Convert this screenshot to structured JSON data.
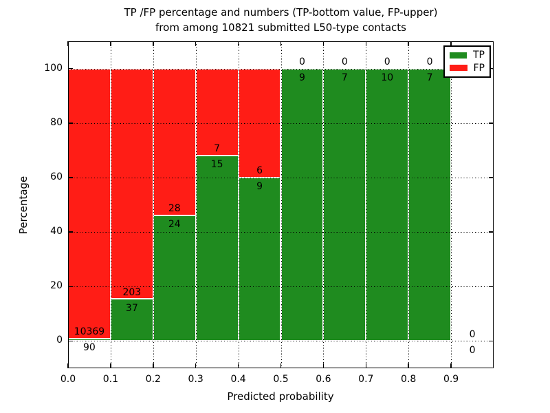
{
  "chart_data": {
    "type": "bar",
    "stacked": true,
    "title_line1": "TP /FP percentage and numbers (TP-bottom value, FP-upper)",
    "title_line2": "from among 10821 submitted L50-type contacts",
    "xlabel": "Predicted probability",
    "ylabel": "Percentage",
    "xlim": [
      0.0,
      1.0
    ],
    "ylim": [
      -10,
      110
    ],
    "grid": true,
    "xticks": [
      "0.0",
      "0.1",
      "0.2",
      "0.3",
      "0.4",
      "0.5",
      "0.6",
      "0.7",
      "0.8",
      "0.9"
    ],
    "yticks": [
      "0",
      "20",
      "40",
      "60",
      "80",
      "100"
    ],
    "legend_position": "upper right",
    "legend": [
      {
        "name": "TP",
        "color": "#1f8b1f"
      },
      {
        "name": "FP",
        "color": "#ff1d16"
      }
    ],
    "colors": {
      "tp": "#1f8b1f",
      "fp": "#ff1d16",
      "bar_edge": "#ffffff"
    },
    "note": "stacked percentage bars; numbers annotated per bin: TP below boundary, FP above boundary",
    "total_contacts": 10821,
    "bins": [
      {
        "x0": 0.0,
        "x1": 0.1,
        "tp": 90,
        "fp": 10369
      },
      {
        "x0": 0.1,
        "x1": 0.2,
        "tp": 37,
        "fp": 203
      },
      {
        "x0": 0.2,
        "x1": 0.3,
        "tp": 24,
        "fp": 28
      },
      {
        "x0": 0.3,
        "x1": 0.4,
        "tp": 15,
        "fp": 7
      },
      {
        "x0": 0.4,
        "x1": 0.5,
        "tp": 9,
        "fp": 6
      },
      {
        "x0": 0.5,
        "x1": 0.6,
        "tp": 9,
        "fp": 0
      },
      {
        "x0": 0.6,
        "x1": 0.7,
        "tp": 7,
        "fp": 0
      },
      {
        "x0": 0.7,
        "x1": 0.8,
        "tp": 10,
        "fp": 0
      },
      {
        "x0": 0.8,
        "x1": 0.9,
        "tp": 7,
        "fp": 0
      },
      {
        "x0": 0.9,
        "x1": 1.0,
        "tp": 0,
        "fp": 0
      }
    ]
  }
}
